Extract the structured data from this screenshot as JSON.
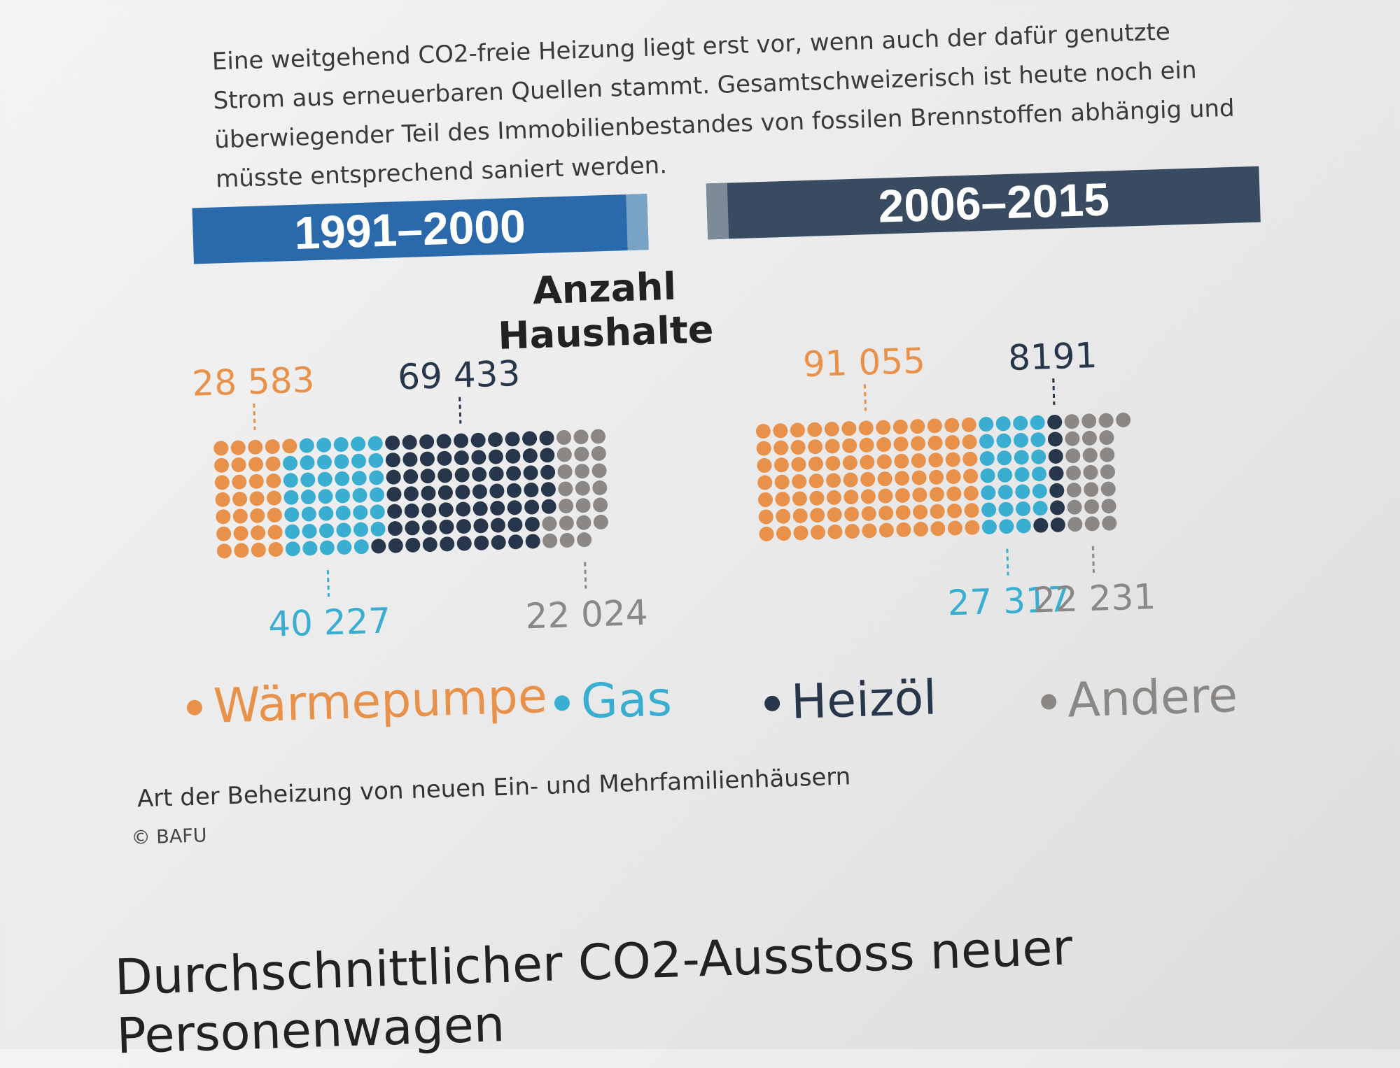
{
  "intro_text": "Eine weitgehend CO2-freie Heizung liegt erst vor, wenn auch der dafür genutzte Strom aus erneuerbaren Quellen stammt. Gesamtschweizerisch ist heute noch ein überwiegender Teil des Immobilienbestandes von fossilen Brennstoffen abhängig und müsste entsprechend saniert werden.",
  "colors": {
    "waermepumpe": "#e8914a",
    "gas": "#3aaed0",
    "heizoel": "#27364a",
    "andere": "#8a8784",
    "period1_bar": "#2a6aab",
    "period2_bar": "#394b61"
  },
  "chart_data": {
    "type": "waffle",
    "title": "Anzahl Haushalte",
    "unit_per_dot": 1000,
    "categories": [
      "Wärmepumpe",
      "Gas",
      "Heizöl",
      "Andere"
    ],
    "series": [
      {
        "name": "1991–2000",
        "values": [
          28583,
          40227,
          69433,
          22024
        ]
      },
      {
        "name": "2006–2015",
        "values": [
          91055,
          27317,
          8191,
          22231
        ]
      }
    ],
    "value_labels": [
      [
        "28 583",
        "40 227",
        "69 433",
        "22 024"
      ],
      [
        "91 055",
        "27 317",
        "8191",
        "22 231"
      ]
    ],
    "legend": [
      "Wärmepumpe",
      "Gas",
      "Heizöl",
      "Andere"
    ],
    "caption": "Art der Beheizung von neuen Ein- und Mehrfamilienhäusern",
    "source": "© BAFU"
  },
  "next_heading": "Durchschnittlicher CO2-Ausstoss neuer Personenwagen"
}
